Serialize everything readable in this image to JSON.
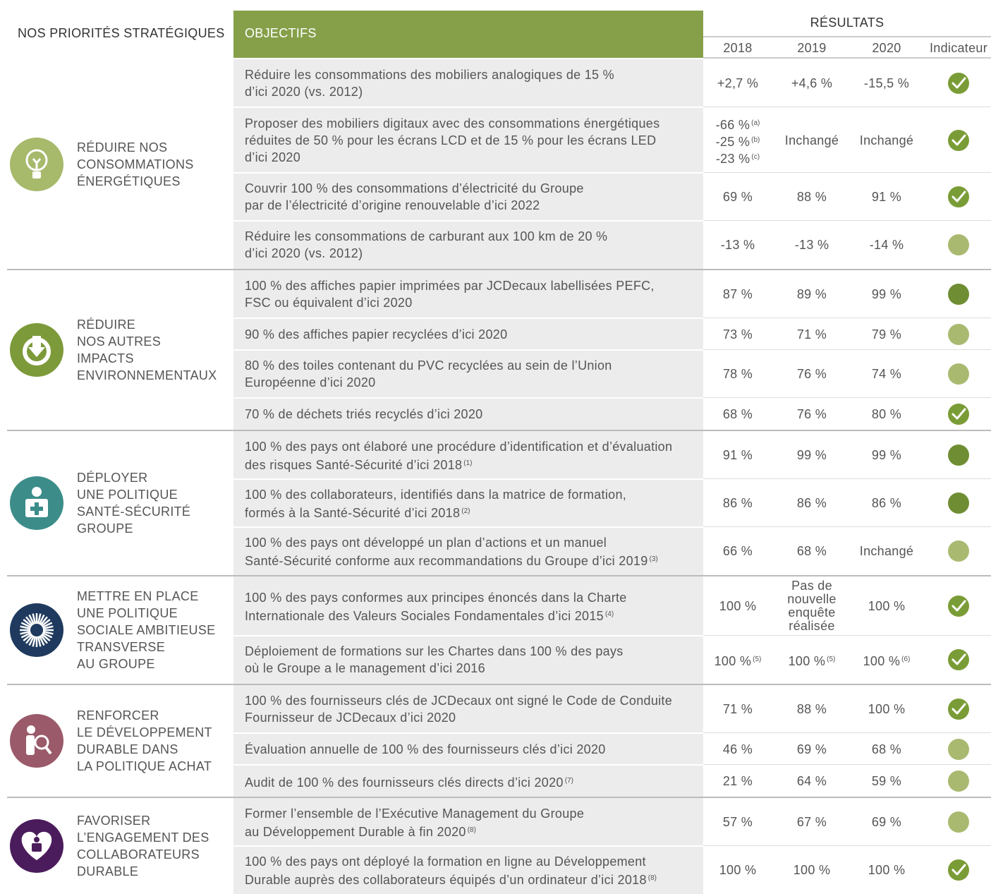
{
  "header": {
    "priorities": "NOS PRIORITÉS STRATÉGIQUES",
    "objectives": "OBJECTIFS",
    "results": "RÉSULTATS",
    "years": [
      "2018",
      "2019",
      "2020"
    ],
    "indicator": "Indicateur"
  },
  "sections": [
    {
      "label": [
        "RÉDUIRE NOS",
        "CONSOMMATIONS",
        "ÉNERGÉTIQUES"
      ],
      "rows": [
        {
          "objective": {
            "lines": [
              "Réduire les consommations des mobiliers analogiques de 15 %",
              "d’ici 2020 (vs. 2012)"
            ]
          },
          "results": [
            "+2,7 %",
            "+4,6 %",
            "-15,5 %"
          ],
          "indicator": "check"
        },
        {
          "objective": {
            "lines": [
              "Proposer des mobiliers digitaux avec des consommations énergétiques",
              "réduites de 50 % pour les écrans LCD et de 15 % pour les écrans LED",
              "d’ici 2020"
            ]
          },
          "results": [
            [
              {
                "text": "-66 %",
                "note": "(a)"
              },
              {
                "text": "-25 %",
                "note": "(b)"
              },
              {
                "text": "-23 %",
                "note": "(c)"
              }
            ],
            "Inchangé",
            "Inchangé"
          ],
          "indicator": "check"
        },
        {
          "objective": {
            "lines": [
              "Couvrir 100 % des consommations d’électricité du Groupe",
              "par de l’électricité d’origine renouvelable d’ici 2022"
            ]
          },
          "results": [
            "69 %",
            "88 %",
            "91 %"
          ],
          "indicator": "check"
        },
        {
          "objective": {
            "lines": [
              "Réduire les consommations de carburant aux 100 km de 20 %",
              "d’ici 2020 (vs. 2012)"
            ]
          },
          "results": [
            "-13 %",
            "-13 %",
            "-14 %"
          ],
          "indicator": "light"
        }
      ]
    },
    {
      "label": [
        "RÉDUIRE",
        "NOS AUTRES",
        "IMPACTS",
        "ENVIRONNEMENTAUX"
      ],
      "rows": [
        {
          "objective": {
            "lines": [
              "100 % des affiches papier imprimées par JCDecaux labellisées PEFC,",
              "FSC ou équivalent d’ici 2020"
            ]
          },
          "results": [
            "87 %",
            "89 %",
            "99 %"
          ],
          "indicator": "dark"
        },
        {
          "objective": {
            "lines": [
              "90 % des affiches papier recyclées d’ici 2020"
            ]
          },
          "results": [
            "73 %",
            "71 %",
            "79 %"
          ],
          "indicator": "light"
        },
        {
          "objective": {
            "lines": [
              "80 % des toiles contenant du PVC recyclées au sein de l’Union",
              "Européenne d’ici 2020"
            ]
          },
          "results": [
            "78 %",
            "76 %",
            "74 %"
          ],
          "indicator": "light"
        },
        {
          "objective": {
            "lines": [
              "70 % de déchets triés recyclés d’ici 2020"
            ]
          },
          "results": [
            "68 %",
            "76 %",
            "80 %"
          ],
          "indicator": "check"
        }
      ]
    },
    {
      "label": [
        "DÉPLOYER",
        "UNE POLITIQUE",
        "SANTÉ-SÉCURITÉ",
        "GROUPE"
      ],
      "rows": [
        {
          "objective": {
            "lines": [
              "100 % des pays ont élaboré une procédure d’identification et d’évaluation",
              "des risques Santé-Sécurité d’ici 2018"
            ],
            "note": "(1)"
          },
          "results": [
            "91 %",
            "99 %",
            "99 %"
          ],
          "indicator": "dark"
        },
        {
          "objective": {
            "lines": [
              "100 % des collaborateurs, identifiés dans la matrice de formation,",
              "formés à la Santé-Sécurité d’ici 2018"
            ],
            "note": "(2)"
          },
          "results": [
            "86 %",
            "86 %",
            "86 %"
          ],
          "indicator": "dark"
        },
        {
          "objective": {
            "lines": [
              "100 % des pays ont développé un plan d’actions et un manuel",
              "Santé-Sécurité conforme aux recommandations du Groupe d’ici 2019"
            ],
            "note": "(3)"
          },
          "results": [
            "66 %",
            "68 %",
            "Inchangé"
          ],
          "indicator": "light"
        }
      ]
    },
    {
      "label": [
        "METTRE EN PLACE",
        "UNE POLITIQUE",
        "SOCIALE AMBITIEUSE",
        "TRANSVERSE",
        "AU GROUPE"
      ],
      "rows": [
        {
          "objective": {
            "lines": [
              "100 % des pays conformes aux principes énoncés dans la Charte",
              "Internationale des Valeurs Sociales Fondamentales d’ici 2015"
            ],
            "note": "(4)"
          },
          "results": [
            "100 %",
            [
              "Pas de",
              "nouvelle",
              "enquête",
              "réalisée"
            ],
            "100 %"
          ],
          "indicator": "check"
        },
        {
          "objective": {
            "lines": [
              "Déploiement de formations sur les Chartes dans 100 % des pays",
              "où le Groupe a le management d’ici 2016"
            ]
          },
          "results": [
            {
              "text": "100 %",
              "note": "(5)"
            },
            {
              "text": "100 %",
              "note": "(5)"
            },
            {
              "text": "100 %",
              "note": "(6)"
            }
          ],
          "indicator": "check"
        }
      ]
    },
    {
      "label": [
        "RENFORCER",
        "LE DÉVELOPPEMENT",
        "DURABLE DANS",
        "LA POLITIQUE ACHAT"
      ],
      "rows": [
        {
          "objective": {
            "lines": [
              "100 % des fournisseurs clés de JCDecaux ont signé le Code de Conduite",
              "Fournisseur de JCDecaux d’ici 2020"
            ]
          },
          "results": [
            "71 %",
            "88 %",
            "100 %"
          ],
          "indicator": "check"
        },
        {
          "objective": {
            "lines": [
              "Évaluation annuelle de 100 % des fournisseurs clés d’ici 2020"
            ]
          },
          "results": [
            "46 %",
            "69 %",
            "68 %"
          ],
          "indicator": "light"
        },
        {
          "objective": {
            "lines": [
              "Audit de 100 % des fournisseurs clés directs d’ici 2020"
            ],
            "note": "(7)"
          },
          "results": [
            "21 %",
            "64 %",
            "59 %"
          ],
          "indicator": "light"
        }
      ]
    },
    {
      "label": [
        "FAVORISER",
        "L’ENGAGEMENT DES",
        "COLLABORATEURS",
        "DURABLE"
      ],
      "rows": [
        {
          "objective": {
            "lines": [
              "Former l’ensemble de l’Exécutive Management du Groupe",
              "au Développement Durable à fin 2020"
            ],
            "note": "(8)"
          },
          "results": [
            "57 %",
            "67 %",
            "69 %"
          ],
          "indicator": "light"
        },
        {
          "objective": {
            "lines": [
              "100 % des pays ont déployé la formation en ligne au Développement",
              "Durable auprès des collaborateurs équipés d’un ordinateur d’ici 2018"
            ],
            "note": "(8)"
          },
          "results": [
            "100 %",
            "100 %",
            "100 %"
          ],
          "indicator": "check"
        }
      ]
    }
  ]
}
